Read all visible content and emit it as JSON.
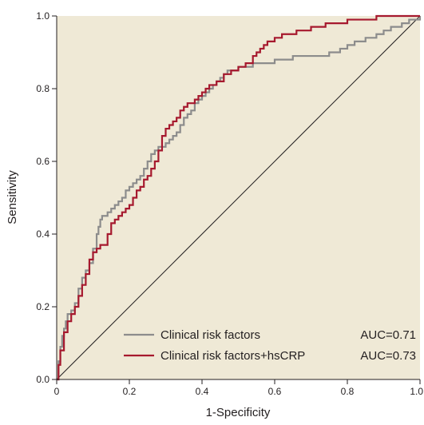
{
  "chart_data": {
    "type": "line",
    "title": "",
    "xlabel": "1-Specificity",
    "ylabel": "Sensitivity",
    "xlim": [
      0,
      1
    ],
    "ylim": [
      0,
      1
    ],
    "x_ticks": [
      "0",
      "0.2",
      "0.4",
      "0.6",
      "0.8",
      "1.0"
    ],
    "y_ticks": [
      "0.0",
      "0.2",
      "0.4",
      "0.6",
      "0.8",
      "1.0"
    ],
    "grid": false,
    "legend_position": "bottom-right",
    "plot_background": "#efe9d6",
    "reference_line": {
      "x": [
        0,
        1
      ],
      "y": [
        0,
        1
      ],
      "color": "#231f20"
    },
    "series": [
      {
        "name": "Clinical risk factors",
        "auc_label": "AUC=0.71",
        "color": "#8c8c8c",
        "x": [
          0,
          0.005,
          0.01,
          0.015,
          0.02,
          0.025,
          0.03,
          0.04,
          0.05,
          0.06,
          0.07,
          0.08,
          0.09,
          0.1,
          0.11,
          0.115,
          0.12,
          0.125,
          0.13,
          0.14,
          0.15,
          0.16,
          0.17,
          0.18,
          0.19,
          0.2,
          0.21,
          0.22,
          0.23,
          0.24,
          0.25,
          0.26,
          0.27,
          0.28,
          0.3,
          0.31,
          0.32,
          0.33,
          0.34,
          0.35,
          0.36,
          0.37,
          0.38,
          0.39,
          0.4,
          0.41,
          0.42,
          0.43,
          0.44,
          0.45,
          0.46,
          0.47,
          0.48,
          0.5,
          0.52,
          0.54,
          0.56,
          0.58,
          0.6,
          0.62,
          0.65,
          0.7,
          0.75,
          0.78,
          0.8,
          0.82,
          0.85,
          0.88,
          0.9,
          0.92,
          0.95,
          0.97,
          1.0
        ],
        "y": [
          0,
          0.05,
          0.09,
          0.12,
          0.14,
          0.16,
          0.18,
          0.19,
          0.21,
          0.25,
          0.28,
          0.3,
          0.32,
          0.36,
          0.4,
          0.42,
          0.44,
          0.45,
          0.45,
          0.46,
          0.47,
          0.48,
          0.49,
          0.5,
          0.52,
          0.53,
          0.54,
          0.55,
          0.56,
          0.58,
          0.6,
          0.62,
          0.63,
          0.64,
          0.65,
          0.66,
          0.67,
          0.68,
          0.7,
          0.72,
          0.73,
          0.74,
          0.76,
          0.77,
          0.78,
          0.79,
          0.8,
          0.81,
          0.82,
          0.83,
          0.84,
          0.85,
          0.85,
          0.86,
          0.86,
          0.87,
          0.87,
          0.87,
          0.88,
          0.88,
          0.89,
          0.89,
          0.9,
          0.91,
          0.92,
          0.93,
          0.94,
          0.95,
          0.96,
          0.97,
          0.98,
          0.99,
          1.0
        ]
      },
      {
        "name": "Clinical risk factors+hsCRP",
        "auc_label": "AUC=0.73",
        "color": "#a6192e",
        "x": [
          0,
          0.005,
          0.01,
          0.02,
          0.03,
          0.04,
          0.05,
          0.06,
          0.07,
          0.08,
          0.09,
          0.1,
          0.11,
          0.12,
          0.13,
          0.14,
          0.15,
          0.16,
          0.17,
          0.18,
          0.19,
          0.2,
          0.21,
          0.22,
          0.23,
          0.24,
          0.25,
          0.26,
          0.27,
          0.28,
          0.29,
          0.3,
          0.31,
          0.32,
          0.33,
          0.34,
          0.35,
          0.36,
          0.37,
          0.38,
          0.39,
          0.4,
          0.41,
          0.42,
          0.43,
          0.44,
          0.46,
          0.48,
          0.5,
          0.52,
          0.54,
          0.55,
          0.56,
          0.57,
          0.58,
          0.6,
          0.62,
          0.64,
          0.66,
          0.68,
          0.7,
          0.72,
          0.74,
          0.76,
          0.78,
          0.8,
          0.82,
          0.84,
          0.86,
          0.88,
          0.9,
          0.92,
          0.94,
          0.96,
          1.0
        ],
        "y": [
          0,
          0.04,
          0.08,
          0.13,
          0.16,
          0.18,
          0.2,
          0.23,
          0.26,
          0.29,
          0.33,
          0.35,
          0.36,
          0.37,
          0.37,
          0.4,
          0.43,
          0.44,
          0.45,
          0.46,
          0.47,
          0.48,
          0.5,
          0.52,
          0.53,
          0.55,
          0.56,
          0.58,
          0.6,
          0.63,
          0.67,
          0.69,
          0.7,
          0.71,
          0.72,
          0.74,
          0.75,
          0.76,
          0.76,
          0.77,
          0.78,
          0.79,
          0.8,
          0.81,
          0.81,
          0.82,
          0.84,
          0.85,
          0.86,
          0.87,
          0.89,
          0.9,
          0.91,
          0.92,
          0.93,
          0.94,
          0.95,
          0.95,
          0.96,
          0.96,
          0.97,
          0.97,
          0.98,
          0.98,
          0.98,
          0.99,
          0.99,
          0.99,
          0.99,
          1.0,
          1.0,
          1.0,
          1.0,
          1.0,
          1.0
        ]
      }
    ]
  }
}
